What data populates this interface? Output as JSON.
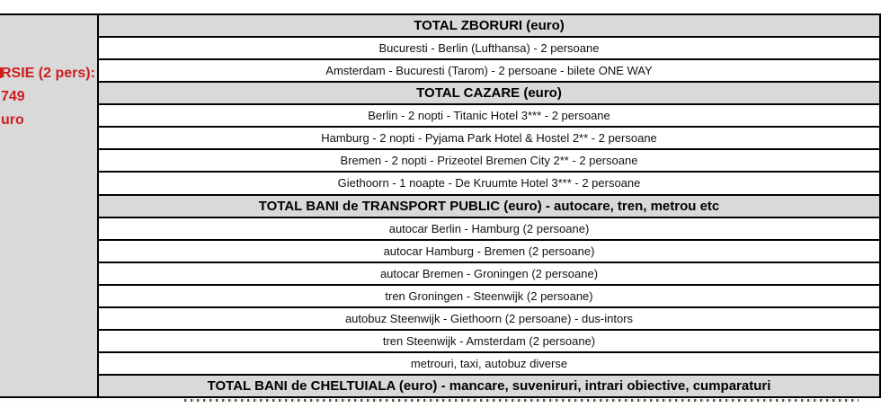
{
  "colors": {
    "gray_fill": "#d9d9d9",
    "border_color": "#000000",
    "red_text": "#cf1d1d",
    "data_text": "#111111"
  },
  "left_panel": {
    "lines": [
      "RSIE (2 pers):",
      "749",
      "uro"
    ]
  },
  "table": {
    "rows": [
      {
        "type": "header",
        "label": "TOTAL ZBORURI (euro)"
      },
      {
        "type": "data",
        "label": "Bucuresti - Berlin (Lufthansa) - 2 persoane"
      },
      {
        "type": "data",
        "label": "Amsterdam - Bucuresti (Tarom) - 2 persoane - bilete ONE WAY"
      },
      {
        "type": "header",
        "label": "TOTAL CAZARE (euro)"
      },
      {
        "type": "data",
        "label": "Berlin - 2 nopti - Titanic Hotel 3*** - 2 persoane"
      },
      {
        "type": "data",
        "label": "Hamburg - 2 nopti - Pyjama Park Hotel & Hostel 2** - 2 persoane"
      },
      {
        "type": "data",
        "label": "Bremen - 2 nopti - Prizeotel Bremen City 2** - 2 persoane"
      },
      {
        "type": "data",
        "label": "Giethoorn - 1 noapte - De Kruumte Hotel 3*** - 2 persoane"
      },
      {
        "type": "header",
        "label": "TOTAL BANI de TRANSPORT PUBLIC (euro) - autocare, tren, metrou etc"
      },
      {
        "type": "data",
        "label": "autocar Berlin - Hamburg (2 persoane)"
      },
      {
        "type": "data",
        "label": "autocar Hamburg - Bremen (2 persoane)"
      },
      {
        "type": "data",
        "label": "autocar Bremen - Groningen (2 persoane)"
      },
      {
        "type": "data",
        "label": "tren Groningen - Steenwijk (2 persoane)"
      },
      {
        "type": "data",
        "label": "autobuz Steenwijk - Giethoorn (2 persoane) - dus-intors"
      },
      {
        "type": "data",
        "label": "tren Steenwijk - Amsterdam (2 persoane)"
      },
      {
        "type": "data",
        "label": "metrouri, taxi, autobuz diverse"
      },
      {
        "type": "header",
        "label": "TOTAL BANI de CHELTUIALA (euro) - mancare, suveniruri, intrari obiective, cumparaturi"
      }
    ]
  }
}
